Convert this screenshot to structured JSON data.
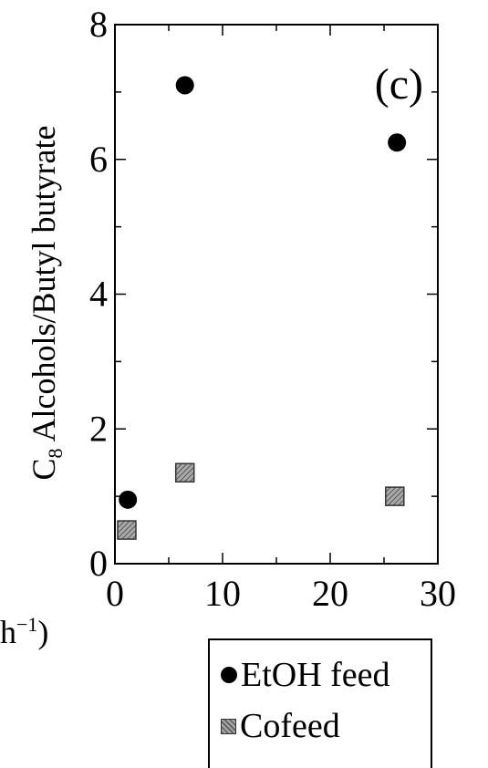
{
  "chart_data": {
    "type": "scatter",
    "panel_label": "(c)",
    "ylabel_parts": {
      "prefix": "C",
      "subscript": "8",
      "rest": " Alcohols/Butyl butyrate"
    },
    "xlim": [
      0,
      30
    ],
    "ylim": [
      0,
      8
    ],
    "x_ticks": [
      0,
      10,
      20,
      30
    ],
    "y_ticks": [
      0,
      2,
      4,
      6,
      8
    ],
    "series": [
      {
        "name": "EtOH feed",
        "marker": "circle",
        "color": "#000000",
        "x": [
          1.2,
          6.5,
          26.2
        ],
        "y": [
          0.95,
          7.1,
          6.25
        ]
      },
      {
        "name": "Cofeed",
        "marker": "square",
        "color": "#888888",
        "x": [
          1.1,
          6.5,
          26.0
        ],
        "y": [
          0.5,
          1.35,
          1.0
        ]
      }
    ],
    "xlabel_fragment": {
      "text": "h",
      "sup": "−1",
      "close": ")"
    }
  }
}
